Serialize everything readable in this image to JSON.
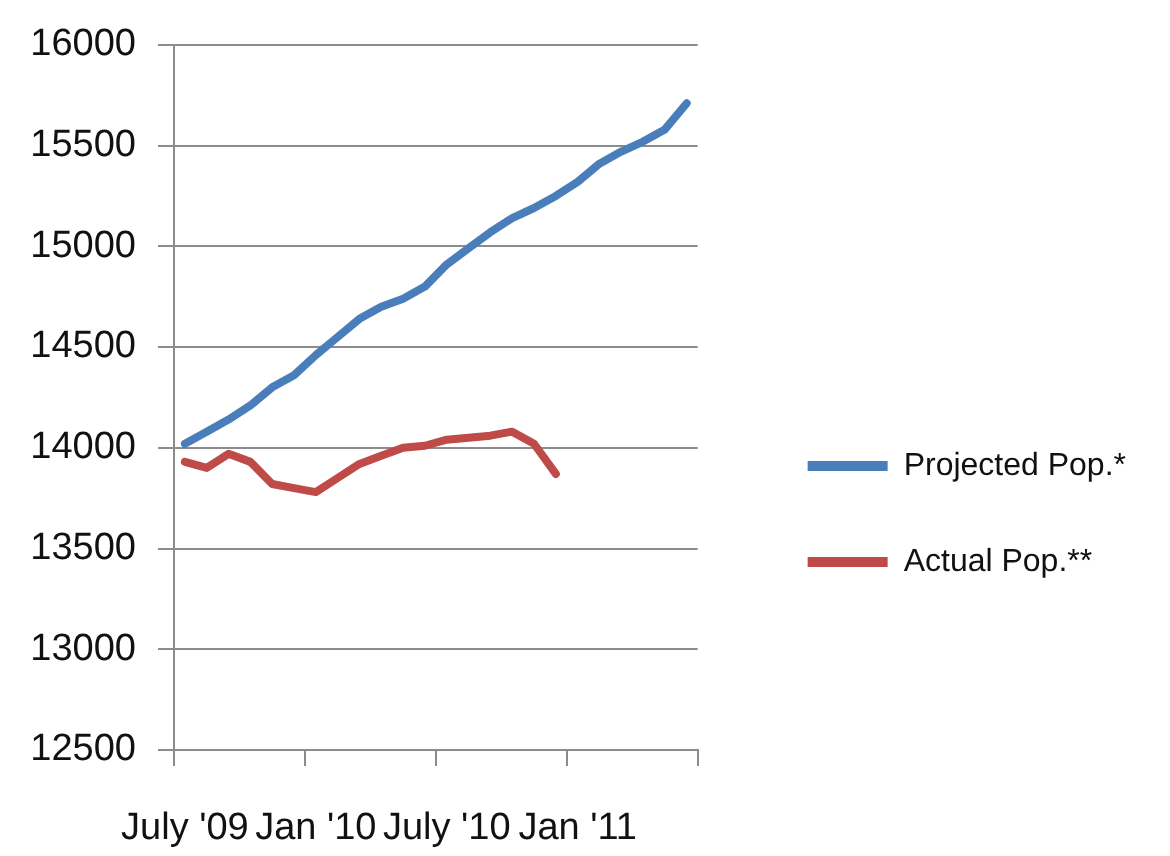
{
  "chart_data": {
    "type": "line",
    "categories": [
      "July '09",
      null,
      null,
      null,
      null,
      null,
      "Jan '10",
      null,
      null,
      null,
      null,
      null,
      "July '10",
      null,
      null,
      null,
      null,
      null,
      "Jan '11",
      null,
      null,
      null,
      null,
      null
    ],
    "series": [
      {
        "name": "Projected Pop.*",
        "color": "#4a7ebb",
        "values": [
          14020,
          14080,
          14140,
          14210,
          14300,
          14360,
          14460,
          14550,
          14640,
          14700,
          14740,
          14800,
          14910,
          14990,
          15070,
          15140,
          15190,
          15250,
          15320,
          15410,
          15470,
          15520,
          15580,
          15710
        ]
      },
      {
        "name": "Actual Pop.**",
        "color": "#be4b48",
        "values": [
          13930,
          13900,
          13970,
          13930,
          13820,
          13800,
          13780,
          13850,
          13920,
          13960,
          14000,
          14010,
          14040,
          14050,
          14060,
          14080,
          14020,
          13870,
          null,
          null,
          null,
          null,
          null,
          null
        ]
      }
    ],
    "ylim": [
      12500,
      16000
    ],
    "yticks": [
      12500,
      13000,
      13500,
      14000,
      14500,
      15000,
      15500,
      16000
    ],
    "grid": "y",
    "legend": "right",
    "marker": "none",
    "line_style": "solid"
  }
}
